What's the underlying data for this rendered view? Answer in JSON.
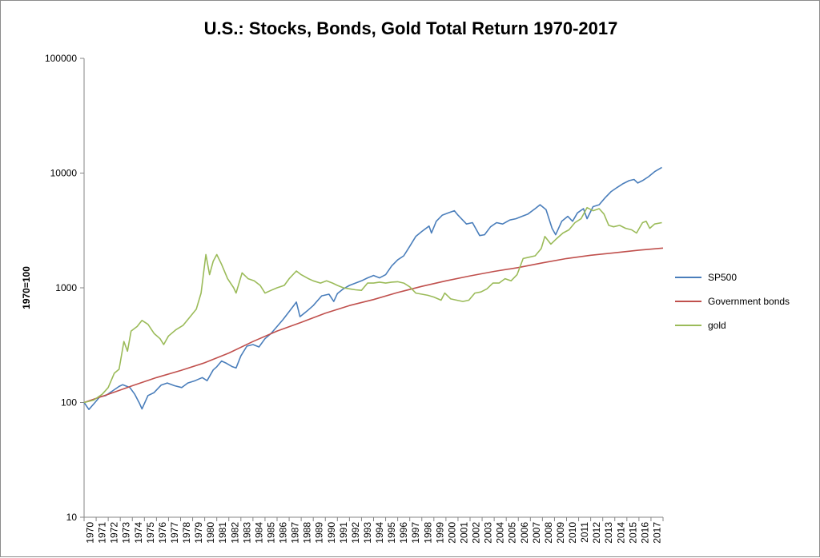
{
  "chart_data": {
    "type": "line",
    "title": "U.S.: Stocks, Bonds, Gold Total Return 1970-2017",
    "xlabel": "",
    "ylabel": "1970=100",
    "yscale": "log",
    "ylim": [
      10,
      100000
    ],
    "y_ticks": [
      "10",
      "100",
      "1000",
      "10000",
      "100000"
    ],
    "x_ticks": [
      "1970",
      "1971",
      "1972",
      "1973",
      "1974",
      "1975",
      "1976",
      "1977",
      "1978",
      "1979",
      "1980",
      "1981",
      "1982",
      "1983",
      "1984",
      "1985",
      "1986",
      "1987",
      "1988",
      "1989",
      "1990",
      "1991",
      "1992",
      "1993",
      "1994",
      "1995",
      "1996",
      "1997",
      "1998",
      "1999",
      "2000",
      "2001",
      "2002",
      "2003",
      "2004",
      "2005",
      "2006",
      "2007",
      "2008",
      "2009",
      "2010",
      "2011",
      "2012",
      "2013",
      "2014",
      "2015",
      "2016",
      "2017"
    ],
    "xlim": [
      1970,
      2018
    ],
    "grid": false,
    "legend_position": "right",
    "series": [
      {
        "name": "SP500",
        "color": "#4a7ebb",
        "points": [
          [
            1970,
            100
          ],
          [
            1970.4,
            87
          ],
          [
            1970.9,
            100
          ],
          [
            1971.3,
            112
          ],
          [
            1971.8,
            115
          ],
          [
            1972.3,
            125
          ],
          [
            1972.9,
            138
          ],
          [
            1973.2,
            143
          ],
          [
            1973.8,
            135
          ],
          [
            1974.2,
            118
          ],
          [
            1974.6,
            98
          ],
          [
            1974.8,
            88
          ],
          [
            1975.3,
            115
          ],
          [
            1975.8,
            122
          ],
          [
            1976.4,
            142
          ],
          [
            1976.9,
            148
          ],
          [
            1977.5,
            140
          ],
          [
            1978.1,
            135
          ],
          [
            1978.6,
            148
          ],
          [
            1979.2,
            155
          ],
          [
            1979.8,
            165
          ],
          [
            1980.2,
            155
          ],
          [
            1980.7,
            192
          ],
          [
            1981.0,
            205
          ],
          [
            1981.4,
            230
          ],
          [
            1981.8,
            220
          ],
          [
            1982.3,
            205
          ],
          [
            1982.6,
            200
          ],
          [
            1983.0,
            255
          ],
          [
            1983.5,
            310
          ],
          [
            1984.0,
            320
          ],
          [
            1984.5,
            305
          ],
          [
            1985.0,
            360
          ],
          [
            1985.5,
            400
          ],
          [
            1986.0,
            460
          ],
          [
            1986.5,
            530
          ],
          [
            1987.0,
            620
          ],
          [
            1987.6,
            750
          ],
          [
            1987.9,
            560
          ],
          [
            1988.5,
            630
          ],
          [
            1989.0,
            700
          ],
          [
            1989.7,
            850
          ],
          [
            1990.3,
            880
          ],
          [
            1990.7,
            760
          ],
          [
            1991.0,
            890
          ],
          [
            1991.5,
            980
          ],
          [
            1992.0,
            1050
          ],
          [
            1992.5,
            1100
          ],
          [
            1993.0,
            1150
          ],
          [
            1993.5,
            1220
          ],
          [
            1994.0,
            1280
          ],
          [
            1994.5,
            1220
          ],
          [
            1995.0,
            1300
          ],
          [
            1995.5,
            1550
          ],
          [
            1996.0,
            1750
          ],
          [
            1996.5,
            1900
          ],
          [
            1997.0,
            2300
          ],
          [
            1997.5,
            2800
          ],
          [
            1998.0,
            3100
          ],
          [
            1998.6,
            3450
          ],
          [
            1998.8,
            3000
          ],
          [
            1999.2,
            3800
          ],
          [
            1999.7,
            4300
          ],
          [
            2000.2,
            4500
          ],
          [
            2000.7,
            4700
          ],
          [
            2001.0,
            4300
          ],
          [
            2001.7,
            3600
          ],
          [
            2002.2,
            3700
          ],
          [
            2002.8,
            2850
          ],
          [
            2003.2,
            2900
          ],
          [
            2003.7,
            3400
          ],
          [
            2004.2,
            3700
          ],
          [
            2004.7,
            3600
          ],
          [
            2005.3,
            3900
          ],
          [
            2005.8,
            4000
          ],
          [
            2006.3,
            4200
          ],
          [
            2006.8,
            4400
          ],
          [
            2007.4,
            4900
          ],
          [
            2007.8,
            5300
          ],
          [
            2008.3,
            4800
          ],
          [
            2008.8,
            3300
          ],
          [
            2009.1,
            2900
          ],
          [
            2009.6,
            3800
          ],
          [
            2010.1,
            4200
          ],
          [
            2010.5,
            3800
          ],
          [
            2010.9,
            4500
          ],
          [
            2011.4,
            4900
          ],
          [
            2011.7,
            4000
          ],
          [
            2012.2,
            5100
          ],
          [
            2012.7,
            5300
          ],
          [
            2013.2,
            6100
          ],
          [
            2013.7,
            6900
          ],
          [
            2014.2,
            7500
          ],
          [
            2014.7,
            8100
          ],
          [
            2015.2,
            8600
          ],
          [
            2015.6,
            8800
          ],
          [
            2015.9,
            8200
          ],
          [
            2016.3,
            8600
          ],
          [
            2016.8,
            9300
          ],
          [
            2017.3,
            10300
          ],
          [
            2017.9,
            11200
          ]
        ]
      },
      {
        "name": "Government bonds",
        "color": "#c0504d",
        "points": [
          [
            1970,
            100
          ],
          [
            1972,
            118
          ],
          [
            1974,
            140
          ],
          [
            1976,
            165
          ],
          [
            1978,
            190
          ],
          [
            1980,
            222
          ],
          [
            1982,
            270
          ],
          [
            1984,
            340
          ],
          [
            1986,
            420
          ],
          [
            1988,
            500
          ],
          [
            1990,
            600
          ],
          [
            1992,
            700
          ],
          [
            1994,
            790
          ],
          [
            1996,
            910
          ],
          [
            1998,
            1030
          ],
          [
            2000,
            1150
          ],
          [
            2002,
            1270
          ],
          [
            2004,
            1390
          ],
          [
            2006,
            1500
          ],
          [
            2008,
            1650
          ],
          [
            2010,
            1800
          ],
          [
            2012,
            1920
          ],
          [
            2014,
            2020
          ],
          [
            2016,
            2130
          ],
          [
            2018,
            2220
          ]
        ]
      },
      {
        "name": "gold",
        "color": "#9bbb59",
        "points": [
          [
            1970,
            100
          ],
          [
            1970.8,
            105
          ],
          [
            1971.5,
            118
          ],
          [
            1972.0,
            135
          ],
          [
            1972.5,
            180
          ],
          [
            1972.9,
            195
          ],
          [
            1973.3,
            340
          ],
          [
            1973.6,
            280
          ],
          [
            1973.9,
            420
          ],
          [
            1974.4,
            460
          ],
          [
            1974.8,
            520
          ],
          [
            1975.3,
            480
          ],
          [
            1975.8,
            400
          ],
          [
            1976.3,
            360
          ],
          [
            1976.6,
            320
          ],
          [
            1977.0,
            380
          ],
          [
            1977.6,
            430
          ],
          [
            1978.2,
            470
          ],
          [
            1978.8,
            560
          ],
          [
            1979.3,
            650
          ],
          [
            1979.7,
            900
          ],
          [
            1980.1,
            1950
          ],
          [
            1980.4,
            1300
          ],
          [
            1980.7,
            1700
          ],
          [
            1981.0,
            1950
          ],
          [
            1981.4,
            1600
          ],
          [
            1981.9,
            1200
          ],
          [
            1982.4,
            1000
          ],
          [
            1982.6,
            900
          ],
          [
            1983.1,
            1350
          ],
          [
            1983.6,
            1200
          ],
          [
            1984.1,
            1150
          ],
          [
            1984.6,
            1050
          ],
          [
            1985.0,
            900
          ],
          [
            1985.5,
            950
          ],
          [
            1986.0,
            1000
          ],
          [
            1986.6,
            1050
          ],
          [
            1987.0,
            1200
          ],
          [
            1987.6,
            1400
          ],
          [
            1988.0,
            1300
          ],
          [
            1988.6,
            1200
          ],
          [
            1989.0,
            1150
          ],
          [
            1989.6,
            1100
          ],
          [
            1990.1,
            1150
          ],
          [
            1990.6,
            1100
          ],
          [
            1991.0,
            1050
          ],
          [
            1991.5,
            1000
          ],
          [
            1992.0,
            980
          ],
          [
            1992.5,
            960
          ],
          [
            1993.0,
            950
          ],
          [
            1993.5,
            1100
          ],
          [
            1994.0,
            1100
          ],
          [
            1994.5,
            1120
          ],
          [
            1995.0,
            1100
          ],
          [
            1995.5,
            1120
          ],
          [
            1996.0,
            1130
          ],
          [
            1996.5,
            1100
          ],
          [
            1997.0,
            1020
          ],
          [
            1997.5,
            900
          ],
          [
            1998.0,
            880
          ],
          [
            1998.5,
            860
          ],
          [
            1999.0,
            830
          ],
          [
            1999.6,
            780
          ],
          [
            1999.9,
            900
          ],
          [
            2000.4,
            800
          ],
          [
            2000.9,
            780
          ],
          [
            2001.4,
            760
          ],
          [
            2001.9,
            780
          ],
          [
            2002.4,
            900
          ],
          [
            2002.9,
            920
          ],
          [
            2003.4,
            980
          ],
          [
            2003.9,
            1100
          ],
          [
            2004.4,
            1100
          ],
          [
            2004.9,
            1200
          ],
          [
            2005.4,
            1150
          ],
          [
            2005.9,
            1300
          ],
          [
            2006.4,
            1800
          ],
          [
            2006.9,
            1850
          ],
          [
            2007.4,
            1900
          ],
          [
            2007.9,
            2200
          ],
          [
            2008.2,
            2800
          ],
          [
            2008.7,
            2400
          ],
          [
            2009.2,
            2700
          ],
          [
            2009.7,
            3000
          ],
          [
            2010.2,
            3200
          ],
          [
            2010.7,
            3700
          ],
          [
            2011.2,
            4000
          ],
          [
            2011.7,
            5000
          ],
          [
            2012.2,
            4700
          ],
          [
            2012.7,
            4900
          ],
          [
            2013.1,
            4400
          ],
          [
            2013.5,
            3500
          ],
          [
            2013.9,
            3400
          ],
          [
            2014.4,
            3500
          ],
          [
            2014.9,
            3300
          ],
          [
            2015.4,
            3200
          ],
          [
            2015.8,
            3000
          ],
          [
            2016.3,
            3700
          ],
          [
            2016.6,
            3800
          ],
          [
            2016.9,
            3300
          ],
          [
            2017.3,
            3600
          ],
          [
            2017.9,
            3700
          ]
        ]
      }
    ]
  }
}
